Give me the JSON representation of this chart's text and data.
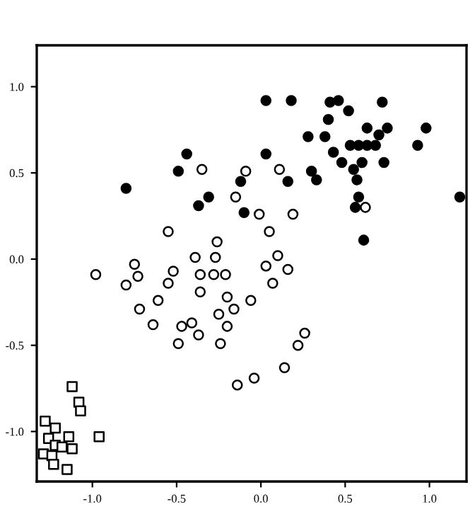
{
  "chart_data": {
    "type": "scatter",
    "xlim": [
      -1.33,
      1.22
    ],
    "ylim": [
      -1.29,
      1.24
    ],
    "xticks": [
      {
        "value": -1.0,
        "label": "-1.0"
      },
      {
        "value": -0.5,
        "label": "-0.5"
      },
      {
        "value": 0.0,
        "label": "0.0"
      },
      {
        "value": 0.5,
        "label": "0.5"
      },
      {
        "value": 1.0,
        "label": "1.0"
      }
    ],
    "yticks": [
      {
        "value": -1.0,
        "label": "-1.0"
      },
      {
        "value": -0.5,
        "label": "-0.5"
      },
      {
        "value": 0.0,
        "label": "0.0"
      },
      {
        "value": 0.5,
        "label": "0.5"
      },
      {
        "value": 1.0,
        "label": "1.0"
      }
    ],
    "grid": false,
    "series": [
      {
        "color": "#000000",
        "marker": "circle",
        "x": [
          0.03,
          0.18,
          0.41,
          0.46,
          0.72,
          0.52,
          0.4,
          0.63,
          0.75,
          0.98,
          0.28,
          0.38,
          0.7,
          0.53,
          0.58,
          0.63,
          0.68,
          0.93,
          0.03,
          -0.44,
          0.43,
          0.48,
          0.6,
          0.73,
          -0.49,
          0.3,
          0.55,
          -0.12,
          0.33,
          0.16,
          0.57,
          -0.8,
          -0.31,
          -0.37,
          0.58,
          0.56,
          1.18,
          -0.1,
          0.61
        ],
        "values": [
          0.92,
          0.92,
          0.91,
          0.92,
          0.91,
          0.86,
          0.81,
          0.76,
          0.76,
          0.76,
          0.71,
          0.71,
          0.72,
          0.66,
          0.66,
          0.66,
          0.66,
          0.66,
          0.61,
          0.61,
          0.62,
          0.56,
          0.56,
          0.56,
          0.51,
          0.51,
          0.52,
          0.45,
          0.46,
          0.45,
          0.46,
          0.41,
          0.36,
          0.31,
          0.36,
          0.3,
          0.36,
          0.27,
          0.11
        ]
      },
      {
        "color": "#ffffff",
        "marker": "circle",
        "x": [
          -0.35,
          -0.09,
          0.11,
          -0.15,
          -0.01,
          0.19,
          0.62,
          -0.55,
          0.05,
          -0.26,
          -0.39,
          -0.27,
          0.1,
          -0.75,
          -0.98,
          -0.73,
          -0.52,
          -0.36,
          -0.28,
          -0.21,
          0.03,
          0.16,
          -0.8,
          -0.55,
          0.07,
          -0.36,
          -0.2,
          -0.61,
          -0.06,
          -0.72,
          -0.16,
          -0.25,
          -0.64,
          -0.41,
          -0.47,
          -0.2,
          -0.37,
          -0.49,
          -0.24,
          0.26,
          0.22,
          0.14,
          -0.04,
          -0.14
        ],
        "values": [
          0.52,
          0.51,
          0.52,
          0.36,
          0.26,
          0.26,
          0.3,
          0.16,
          0.16,
          0.1,
          0.01,
          0.01,
          0.02,
          -0.03,
          -0.09,
          -0.1,
          -0.07,
          -0.09,
          -0.09,
          -0.09,
          -0.04,
          -0.06,
          -0.15,
          -0.14,
          -0.14,
          -0.19,
          -0.22,
          -0.24,
          -0.24,
          -0.29,
          -0.29,
          -0.32,
          -0.38,
          -0.37,
          -0.39,
          -0.39,
          -0.44,
          -0.49,
          -0.49,
          -0.43,
          -0.5,
          -0.63,
          -0.69,
          -0.73
        ]
      },
      {
        "color": "#ffffff",
        "marker": "square",
        "x": [
          -1.12,
          -1.08,
          -1.07,
          -1.28,
          -1.22,
          -0.96,
          -1.26,
          -1.14,
          -1.22,
          -1.18,
          -1.12,
          -1.29,
          -1.24,
          -1.23,
          -1.15
        ],
        "values": [
          -0.74,
          -0.83,
          -0.88,
          -0.94,
          -0.98,
          -1.03,
          -1.04,
          -1.03,
          -1.08,
          -1.09,
          -1.1,
          -1.13,
          -1.14,
          -1.19,
          -1.22
        ]
      }
    ]
  }
}
